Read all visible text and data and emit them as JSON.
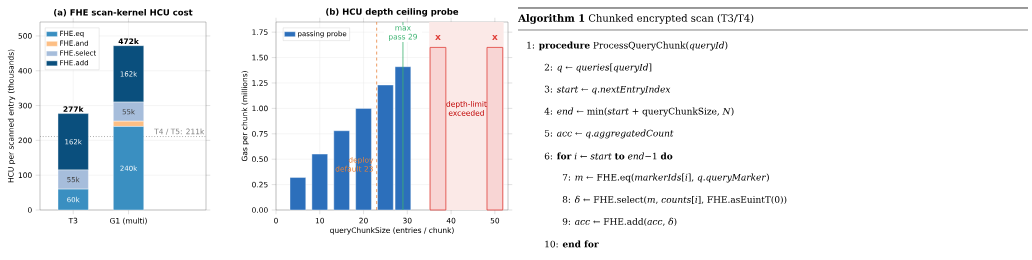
{
  "chart_data": [
    {
      "type": "bar",
      "title": "(a) FHE scan-kernel HCU cost",
      "ylabel": "HCU per scanned entry (thousands)",
      "categories": [
        "T3",
        "G1 (multi)"
      ],
      "stacked": true,
      "series": [
        {
          "name": "FHE.eq",
          "color": "#3a8fc1",
          "values": [
            60,
            240
          ],
          "value_labels": [
            "60k",
            "240k"
          ]
        },
        {
          "name": "FHE.and",
          "color": "#fdbf85",
          "values": [
            0,
            15
          ],
          "value_labels": [
            null,
            null
          ]
        },
        {
          "name": "FHE.select",
          "color": "#a6bddb",
          "values": [
            55,
            55
          ],
          "value_labels": [
            "55k",
            "55k"
          ]
        },
        {
          "name": "FHE.add",
          "color": "#0a4f7d",
          "values": [
            162,
            162
          ],
          "value_labels": [
            "162k",
            "162k"
          ]
        }
      ],
      "totals": [
        "277k",
        "472k"
      ],
      "ylim": [
        0,
        540
      ],
      "yticks": [
        0,
        100,
        200,
        300,
        400,
        500
      ],
      "grid": true,
      "legend": "top left",
      "ref_lines": [
        {
          "axis": "y",
          "value": 211,
          "label": "T4 / T5: 211k",
          "color": "#808080",
          "line_style": "dotted"
        }
      ]
    },
    {
      "type": "bar",
      "title": "(b) HCU depth ceiling probe",
      "xlabel": "queryChunkSize (entries / chunk)",
      "ylabel": "Gas per chunk (millions)",
      "series": [
        {
          "name": "passing probe",
          "color": "#2c6fbb",
          "x": [
            5,
            10,
            15,
            20,
            25,
            29
          ],
          "values": [
            0.32,
            0.55,
            0.78,
            1.0,
            1.23,
            1.41
          ]
        },
        {
          "color": "#e0403a",
          "x": [
            37,
            50
          ],
          "values": [
            1.6,
            1.6
          ]
        }
      ],
      "xlim": [
        0,
        53
      ],
      "ylim": [
        0,
        1.85
      ],
      "xticks": [
        0,
        10,
        20,
        30,
        40,
        50
      ],
      "yticks": [
        {
          "value": 0,
          "label": "0.00"
        },
        {
          "value": 0.25,
          "label": "0.25"
        },
        {
          "value": 0.5,
          "label": "0.50"
        },
        {
          "value": 0.75,
          "label": "0.75"
        },
        {
          "value": 1,
          "label": "1.00"
        },
        {
          "value": 1.25,
          "label": "1.25"
        },
        {
          "value": 1.5,
          "label": "1.50"
        },
        {
          "value": 1.75,
          "label": "1.75"
        }
      ],
      "grid": true,
      "legend": "top left",
      "ref_lines": [
        {
          "axis": "x",
          "value": 23,
          "label": "deploy default 23",
          "color": "#e8823a",
          "line_style": "dashed"
        },
        {
          "axis": "x",
          "value": 29,
          "label": "max pass 29",
          "color": "#3cb371",
          "line_style": "solid"
        }
      ],
      "bands": [
        {
          "axis": "x",
          "from": 35,
          "to": 52,
          "label": "depth-limit exceeded",
          "color": "#fbe9e7"
        }
      ],
      "annotations": [
        "x",
        "x"
      ]
    },
    {
      "type": "other",
      "title": "**Algorithm 1** Chunked encrypted scan (T3/T4)",
      "annotations": [
        "1: **procedure** ProcessQueryChunk(*queryId*)",
        "2: *q* ← *queries*[*queryId*]",
        "3: *start* ← *q*.*nextEntryIndex*",
        "4: *end* ← min(*start* + queryChunkSize, *N*)",
        "5: *acc* ← *q*.*aggregatedCount*",
        "6: **for** *i* ← *start* **to** *end*−1 **do**",
        "7: *m* ← FHE.eq(*markerIds*[*i*], *q*.*queryMarker*)",
        "8: *δ* ← FHE.select(*m*, *counts*[*i*], FHE.asEuintT(0))",
        "9: *acc* ← FHE.add(*acc*, *δ*)",
        "10: **end for**"
      ]
    }
  ]
}
